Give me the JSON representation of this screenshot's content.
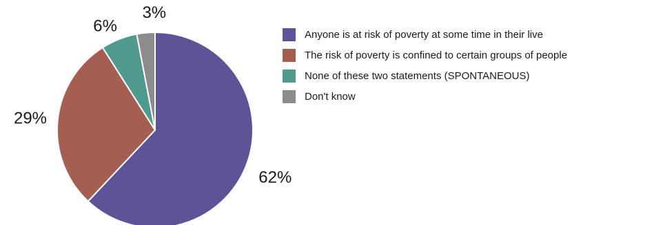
{
  "chart_data": {
    "type": "pie",
    "categories": [
      "Anyone is at risk of poverty at some time in their live",
      "The risk of poverty is confined to certain groups of people",
      "None of these two statements (SPONTANEOUS)",
      "Don't know"
    ],
    "values": [
      62,
      29,
      6,
      3
    ],
    "value_labels": [
      "62%",
      "29%",
      "6%",
      "3%"
    ],
    "colors": [
      "#5c5497",
      "#a55f52",
      "#4f9a8c",
      "#8c8c8c"
    ],
    "start": "top",
    "direction": "clockwise",
    "legend_position": "right"
  }
}
